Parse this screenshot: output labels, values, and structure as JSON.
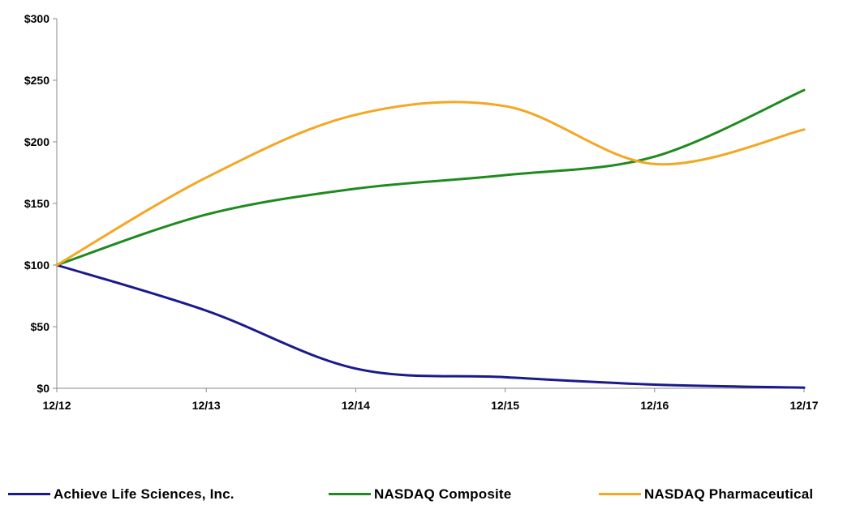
{
  "chart_data": {
    "type": "line",
    "x": [
      "12/12",
      "12/13",
      "12/14",
      "12/15",
      "12/16",
      "12/17"
    ],
    "ylim": [
      0,
      300
    ],
    "yticks": [
      0,
      50,
      100,
      150,
      200,
      250,
      300
    ],
    "ytick_labels": [
      "$0",
      "$50",
      "$100",
      "$150",
      "$200",
      "$250",
      "$300"
    ],
    "grid": false,
    "legend_position": "bottom",
    "series": [
      {
        "name": "Achieve Life Sciences, Inc.",
        "color": "#1a1a8c",
        "values": [
          100,
          63,
          16,
          9,
          3,
          0.5
        ]
      },
      {
        "name": "NASDAQ Composite",
        "color": "#1f8a1f",
        "values": [
          100,
          141,
          162,
          173,
          188,
          242
        ]
      },
      {
        "name": "NASDAQ Pharmaceutical",
        "color": "#f5a623",
        "values": [
          100,
          171,
          222,
          229,
          182,
          210
        ]
      }
    ]
  }
}
